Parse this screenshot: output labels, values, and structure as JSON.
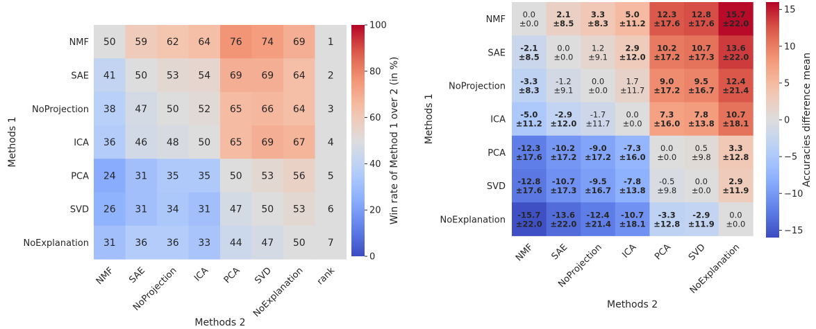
{
  "chart_data": [
    {
      "type": "heatmap",
      "title": "",
      "xlabel": "Methods 2",
      "ylabel": "Methods 1",
      "x_categories": [
        "NMF",
        "SAE",
        "NoProjection",
        "ICA",
        "PCA",
        "SVD",
        "NoExplanation"
      ],
      "y_categories": [
        "NMF",
        "SAE",
        "NoProjection",
        "ICA",
        "PCA",
        "SVD",
        "NoExplanation"
      ],
      "values": [
        [
          50,
          59,
          62,
          64,
          76,
          74,
          69
        ],
        [
          41,
          50,
          53,
          54,
          69,
          69,
          64
        ],
        [
          38,
          47,
          50,
          52,
          65,
          66,
          64
        ],
        [
          36,
          46,
          48,
          50,
          65,
          69,
          67
        ],
        [
          24,
          31,
          35,
          35,
          50,
          53,
          56
        ],
        [
          26,
          31,
          34,
          31,
          47,
          50,
          53
        ],
        [
          31,
          36,
          36,
          33,
          44,
          47,
          50
        ]
      ],
      "rank_label": "rank",
      "ranks": [
        "1",
        "2",
        "3",
        "4",
        "5",
        "6",
        "7"
      ],
      "colorbar": {
        "label": "Win rate of Method 1 over 2 (in %)",
        "range": [
          0,
          100
        ],
        "ticks": [
          "0",
          "20",
          "40",
          "60",
          "80",
          "100"
        ],
        "colormap": "coolwarm"
      }
    },
    {
      "type": "heatmap",
      "title": "",
      "xlabel": "Methods 2",
      "ylabel": "Methods 1",
      "x_categories": [
        "NMF",
        "SAE",
        "NoProjection",
        "ICA",
        "PCA",
        "SVD",
        "NoExplanation"
      ],
      "y_categories": [
        "NMF",
        "SAE",
        "NoProjection",
        "ICA",
        "PCA",
        "SVD",
        "NoExplanation"
      ],
      "means": [
        [
          "0.0",
          "2.1",
          "3.3",
          "5.0",
          "12.3",
          "12.8",
          "15.7"
        ],
        [
          "-2.1",
          "0.0",
          "1.2",
          "2.9",
          "10.2",
          "10.7",
          "13.6"
        ],
        [
          "-3.3",
          "-1.2",
          "0.0",
          "1.7",
          "9.0",
          "9.5",
          "12.4"
        ],
        [
          "-5.0",
          "-2.9",
          "-1.7",
          "0.0",
          "7.3",
          "7.8",
          "10.7"
        ],
        [
          "-12.3",
          "-10.2",
          "-9.0",
          "-7.3",
          "0.0",
          "0.5",
          "3.3"
        ],
        [
          "-12.8",
          "-10.7",
          "-9.5",
          "-7.8",
          "-0.5",
          "0.0",
          "2.9"
        ],
        [
          "-15.7",
          "-13.6",
          "-12.4",
          "-10.7",
          "-3.3",
          "-2.9",
          "0.0"
        ]
      ],
      "stds": [
        [
          "±0.0",
          "±8.5",
          "±8.3",
          "±11.2",
          "±17.6",
          "±17.6",
          "±22.0"
        ],
        [
          "±8.5",
          "±0.0",
          "±9.1",
          "±12.0",
          "±17.2",
          "±17.3",
          "±22.0"
        ],
        [
          "±8.3",
          "±9.1",
          "±0.0",
          "±11.7",
          "±17.2",
          "±16.7",
          "±21.4"
        ],
        [
          "±11.2",
          "±12.0",
          "±11.7",
          "±0.0",
          "±16.0",
          "±13.8",
          "±18.1"
        ],
        [
          "±17.6",
          "±17.2",
          "±17.2",
          "±16.0",
          "±0.0",
          "±9.8",
          "±12.8"
        ],
        [
          "±17.6",
          "±17.3",
          "±16.7",
          "±13.8",
          "±9.8",
          "±0.0",
          "±11.9"
        ],
        [
          "±22.0",
          "±22.0",
          "±21.4",
          "±18.1",
          "±12.8",
          "±11.9",
          "±0.0"
        ]
      ],
      "bold": [
        [
          false,
          true,
          true,
          true,
          true,
          true,
          true
        ],
        [
          true,
          false,
          false,
          true,
          true,
          true,
          true
        ],
        [
          true,
          false,
          false,
          false,
          true,
          true,
          true
        ],
        [
          true,
          true,
          false,
          false,
          true,
          true,
          true
        ],
        [
          true,
          true,
          true,
          true,
          false,
          false,
          true
        ],
        [
          true,
          true,
          true,
          true,
          false,
          false,
          true
        ],
        [
          true,
          true,
          true,
          true,
          true,
          true,
          false
        ]
      ],
      "colorbar": {
        "label": "Accuracies difference mean",
        "range": [
          -16,
          16
        ],
        "ticks": [
          "−15",
          "−10",
          "−5",
          "0",
          "5",
          "10",
          "15"
        ],
        "tick_values": [
          -15,
          -10,
          -5,
          0,
          5,
          10,
          15
        ],
        "colormap": "coolwarm"
      }
    }
  ]
}
